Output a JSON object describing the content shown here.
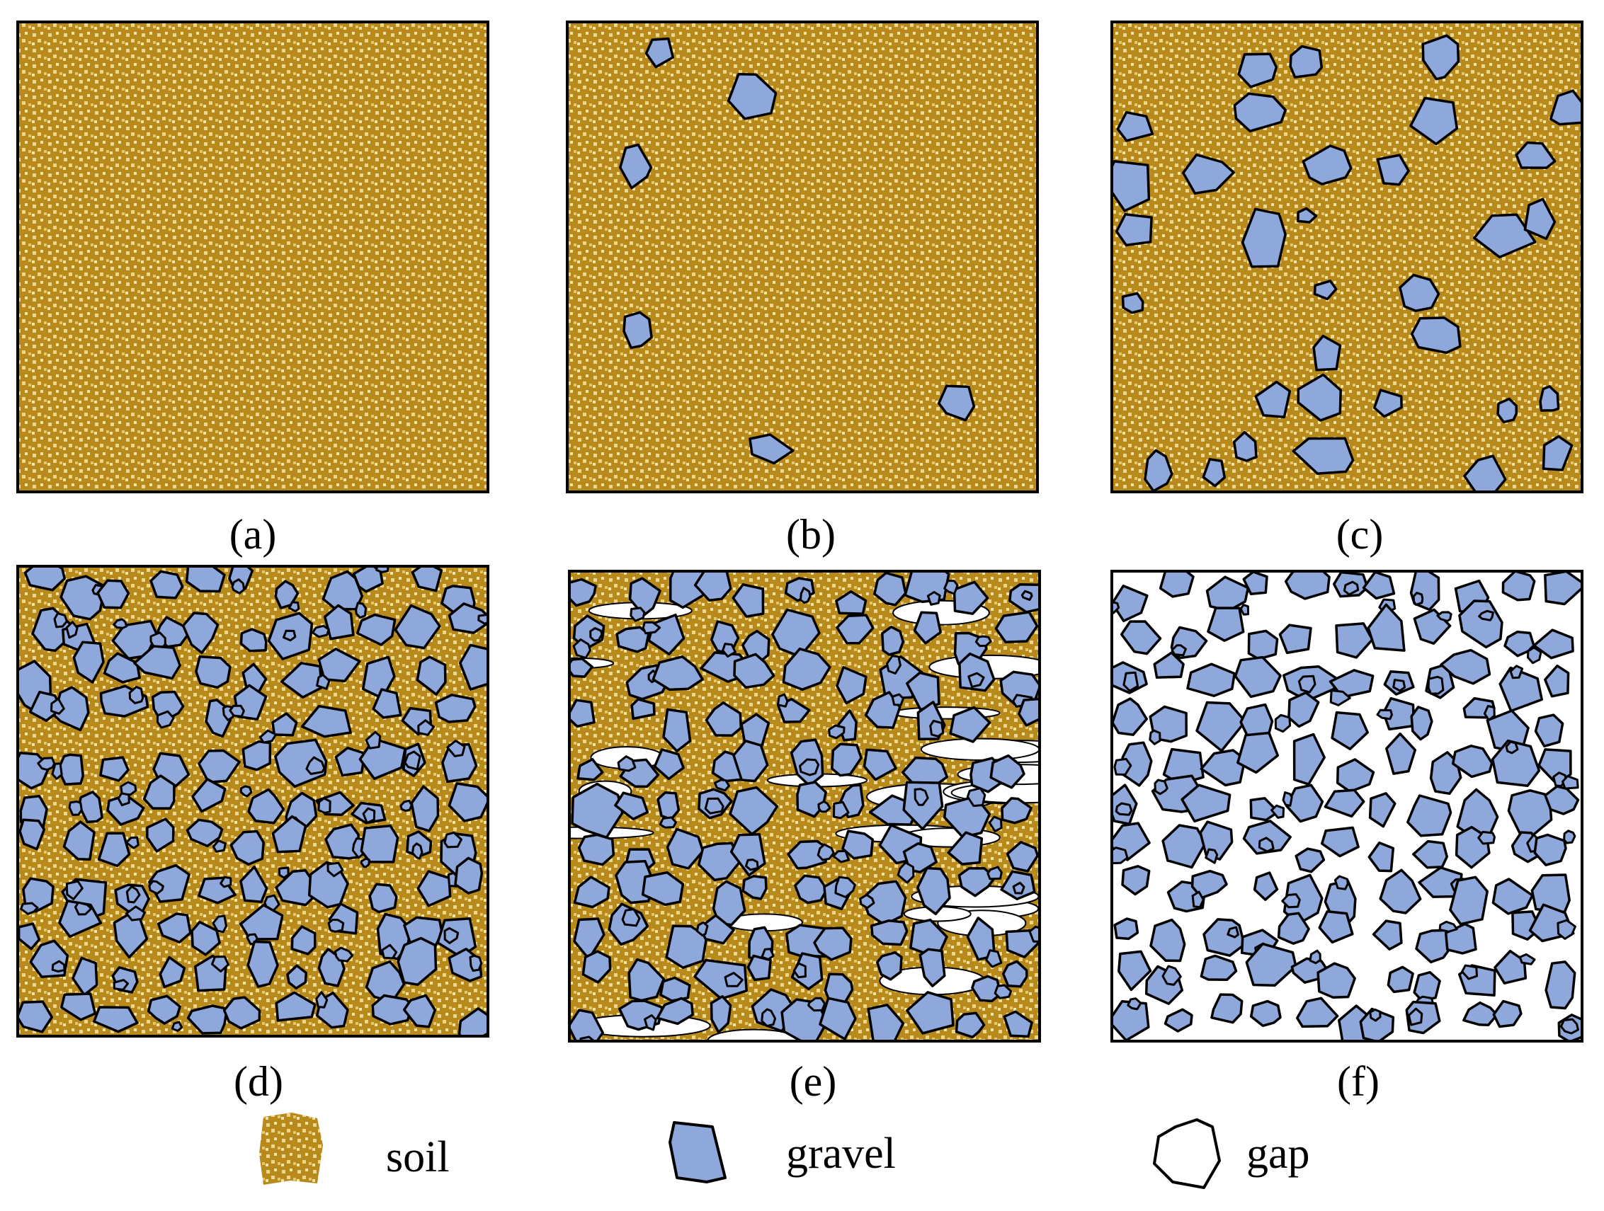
{
  "figure": {
    "panels": [
      {
        "id": "a",
        "label": "(a)",
        "gravel": "none",
        "gap": "none"
      },
      {
        "id": "b",
        "label": "(b)",
        "gravel": "sparse",
        "gap": "none"
      },
      {
        "id": "c",
        "label": "(c)",
        "gravel": "medium",
        "gap": "none"
      },
      {
        "id": "d",
        "label": "(d)",
        "gravel": "dense",
        "gap": "none"
      },
      {
        "id": "e",
        "label": "(e)",
        "gravel": "dense",
        "gap": "partial"
      },
      {
        "id": "f",
        "label": "(f)",
        "gravel": "dense",
        "gap": "full"
      }
    ],
    "legend": [
      {
        "key": "soil",
        "label": "soil"
      },
      {
        "key": "gravel",
        "label": "gravel"
      },
      {
        "key": "gap",
        "label": "gap"
      }
    ],
    "colors": {
      "soil": "#b88a1c",
      "soil_grain": "#ecd78c",
      "gravel": "#8ea8dc",
      "outline": "#000000",
      "gap": "#ffffff"
    }
  }
}
